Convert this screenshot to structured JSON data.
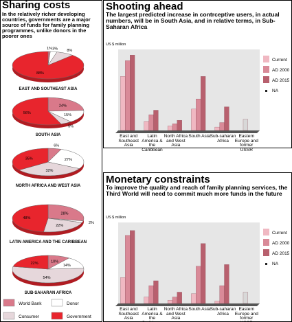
{
  "chart_data": [
    {
      "type": "pie",
      "title": "Sharing costs",
      "subtitle": "In the relatively richer developing countries, governments are a major source of funds for family planning programmes, unlike donors in the poorer ones",
      "categories": [
        "World Bank",
        "Donor",
        "Consumer",
        "Government"
      ],
      "colors": [
        "#d9798a",
        "#ffffff",
        "#e6d7db",
        "#e8252d"
      ],
      "pies": [
        {
          "label": "EAST AND SOUTHEAST ASIA",
          "values": [
            1,
            3,
            8,
            88
          ],
          "value_labels": [
            "1%",
            "3%",
            "8%",
            "88%"
          ]
        },
        {
          "label": "SOUTH ASIA",
          "values": [
            24,
            15,
            5,
            56
          ],
          "value_labels": [
            "24%",
            "15%",
            "5%",
            "56%"
          ]
        },
        {
          "label": "NORTH AFRICA AND WEST ASIA",
          "values": [
            6,
            27,
            32,
            35
          ],
          "value_labels": [
            "6%",
            "27%",
            "32%",
            "35%"
          ]
        },
        {
          "label": "LATIN AMERICA AND THE CARIBBEAN",
          "values": [
            28,
            2,
            22,
            48
          ],
          "value_labels": [
            "28%",
            "2%",
            "22%",
            "48%"
          ]
        },
        {
          "label": "SUB-SAHARAN AFRICA",
          "values": [
            10,
            14,
            54,
            22
          ],
          "value_labels": [
            "10%",
            "14%",
            "54%",
            "22%"
          ]
        }
      ]
    },
    {
      "type": "bar",
      "title": "Shooting ahead",
      "subtitle": "The largest predicted increase in contrceptive users, in actual numbers, will be in South Asia, and in relative terms, in Sub-Saharan Africa",
      "y_label": "US $ million",
      "categories": [
        "East and Southeast Asia",
        "Latin America & the Caribbean",
        "North Africa and West Asia",
        "South Asia",
        "Sub-saharan Africa",
        "Eastern Europe and former USSR"
      ],
      "ylim": [
        0,
        360
      ],
      "series": [
        {
          "name": "Current",
          "color": "#f0b8c2",
          "values": [
            240,
            40,
            20,
            95,
            15,
            null
          ]
        },
        {
          "name": "AD 2000",
          "color": "#d98a98",
          "values": [
            310,
            70,
            30,
            140,
            35,
            null
          ]
        },
        {
          "name": "AD 2015",
          "color": "#b8606e",
          "values": [
            335,
            90,
            45,
            240,
            105,
            null
          ]
        },
        {
          "name": "NA",
          "color": "#d8d8d8",
          "values": [
            null,
            null,
            null,
            null,
            null,
            50
          ]
        }
      ]
    },
    {
      "type": "bar",
      "title": "Monetary constraints",
      "subtitle": "To improve the quality and reach of family planning services, the Third World will need to commit much more funds in the future",
      "y_label": "US $ million",
      "categories": [
        "East and Southeast Asia",
        "Latin America & the Caribbean",
        "North Africa and West Asia",
        "South Asia",
        "Sub-saharan Africa",
        "Eastern Europe and former USSR"
      ],
      "ylim": [
        0,
        5000
      ],
      "series": [
        {
          "name": "Current",
          "color": "#f0b8c2",
          "values": [
            1600,
            400,
            200,
            600,
            150,
            null
          ]
        },
        {
          "name": "AD 2000",
          "color": "#d98a98",
          "values": [
            4200,
            1100,
            400,
            2300,
            1100,
            null
          ]
        },
        {
          "name": "AD 2015",
          "color": "#b8606e",
          "values": [
            4500,
            1400,
            700,
            3700,
            2400,
            null
          ]
        },
        {
          "name": "NA",
          "color": "#d8d8d8",
          "values": [
            null,
            null,
            null,
            null,
            null,
            700
          ]
        }
      ]
    }
  ]
}
